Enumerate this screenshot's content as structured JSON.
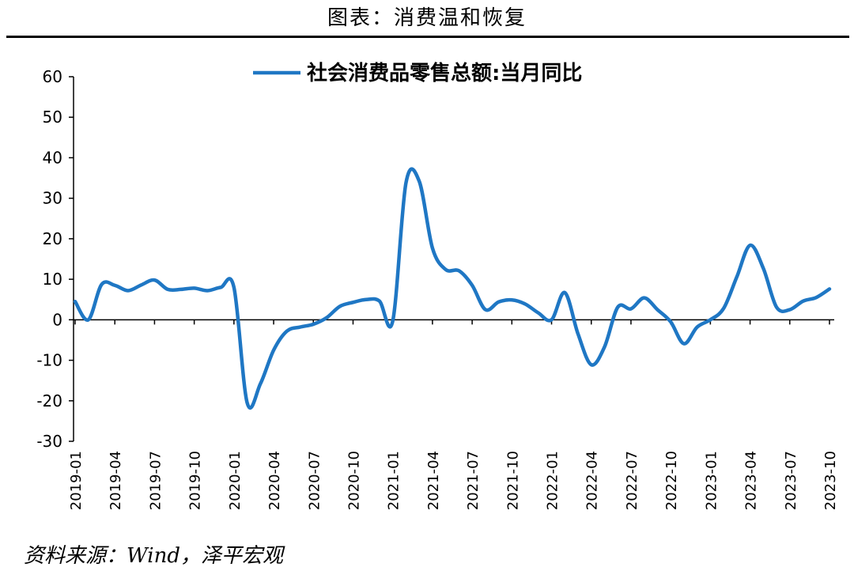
{
  "figure_title": "图表：消费温和恢复",
  "source": "资料来源：Wind，泽平宏观",
  "colors": {
    "series": "#1f77c4",
    "axis": "#000000"
  },
  "chart_data": {
    "type": "line",
    "title": "",
    "xlabel": "",
    "ylabel": "",
    "ylim": [
      -30,
      60
    ],
    "yticks": [
      60,
      50,
      40,
      30,
      20,
      10,
      0,
      -10,
      -20,
      -30
    ],
    "grid": false,
    "legend": "top-center",
    "x_tick_labels": [
      "2019-01",
      "2019-04",
      "2019-07",
      "2019-10",
      "2020-01",
      "2020-04",
      "2020-07",
      "2020-10",
      "2021-01",
      "2021-04",
      "2021-07",
      "2021-10",
      "2022-01",
      "2022-04",
      "2022-07",
      "2022-10",
      "2023-01",
      "2023-04",
      "2023-07",
      "2023-10"
    ],
    "x": [
      "2019-01",
      "2019-02",
      "2019-03",
      "2019-04",
      "2019-05",
      "2019-06",
      "2019-07",
      "2019-08",
      "2019-09",
      "2019-10",
      "2019-11",
      "2019-12",
      "2020-01",
      "2020-02",
      "2020-03",
      "2020-04",
      "2020-05",
      "2020-06",
      "2020-07",
      "2020-08",
      "2020-09",
      "2020-10",
      "2020-11",
      "2020-12",
      "2021-01",
      "2021-02",
      "2021-03",
      "2021-04",
      "2021-05",
      "2021-06",
      "2021-07",
      "2021-08",
      "2021-09",
      "2021-10",
      "2021-11",
      "2021-12",
      "2022-01",
      "2022-02",
      "2022-03",
      "2022-04",
      "2022-05",
      "2022-06",
      "2022-07",
      "2022-08",
      "2022-09",
      "2022-10",
      "2022-11",
      "2022-12",
      "2023-01",
      "2023-02",
      "2023-03",
      "2023-04",
      "2023-05",
      "2023-06",
      "2023-07",
      "2023-08",
      "2023-09",
      "2023-10"
    ],
    "series": [
      {
        "name": "社会消费品零售总额:当月同比",
        "values": [
          4.5,
          0.0,
          8.7,
          8.5,
          7.2,
          8.6,
          9.8,
          7.5,
          7.5,
          7.8,
          7.2,
          8.0,
          8.0,
          -20.5,
          -15.8,
          -7.5,
          -2.8,
          -1.8,
          -1.1,
          0.5,
          3.3,
          4.3,
          5.0,
          4.6,
          -0.3,
          33.8,
          34.2,
          17.7,
          12.4,
          12.1,
          8.5,
          2.5,
          4.4,
          4.9,
          3.9,
          1.7,
          0.0,
          6.7,
          -3.5,
          -11.1,
          -6.7,
          3.1,
          2.7,
          5.4,
          2.5,
          -0.5,
          -5.9,
          -1.8,
          0.0,
          2.8,
          10.6,
          18.4,
          12.7,
          3.1,
          2.5,
          4.6,
          5.5,
          7.6
        ]
      }
    ]
  }
}
